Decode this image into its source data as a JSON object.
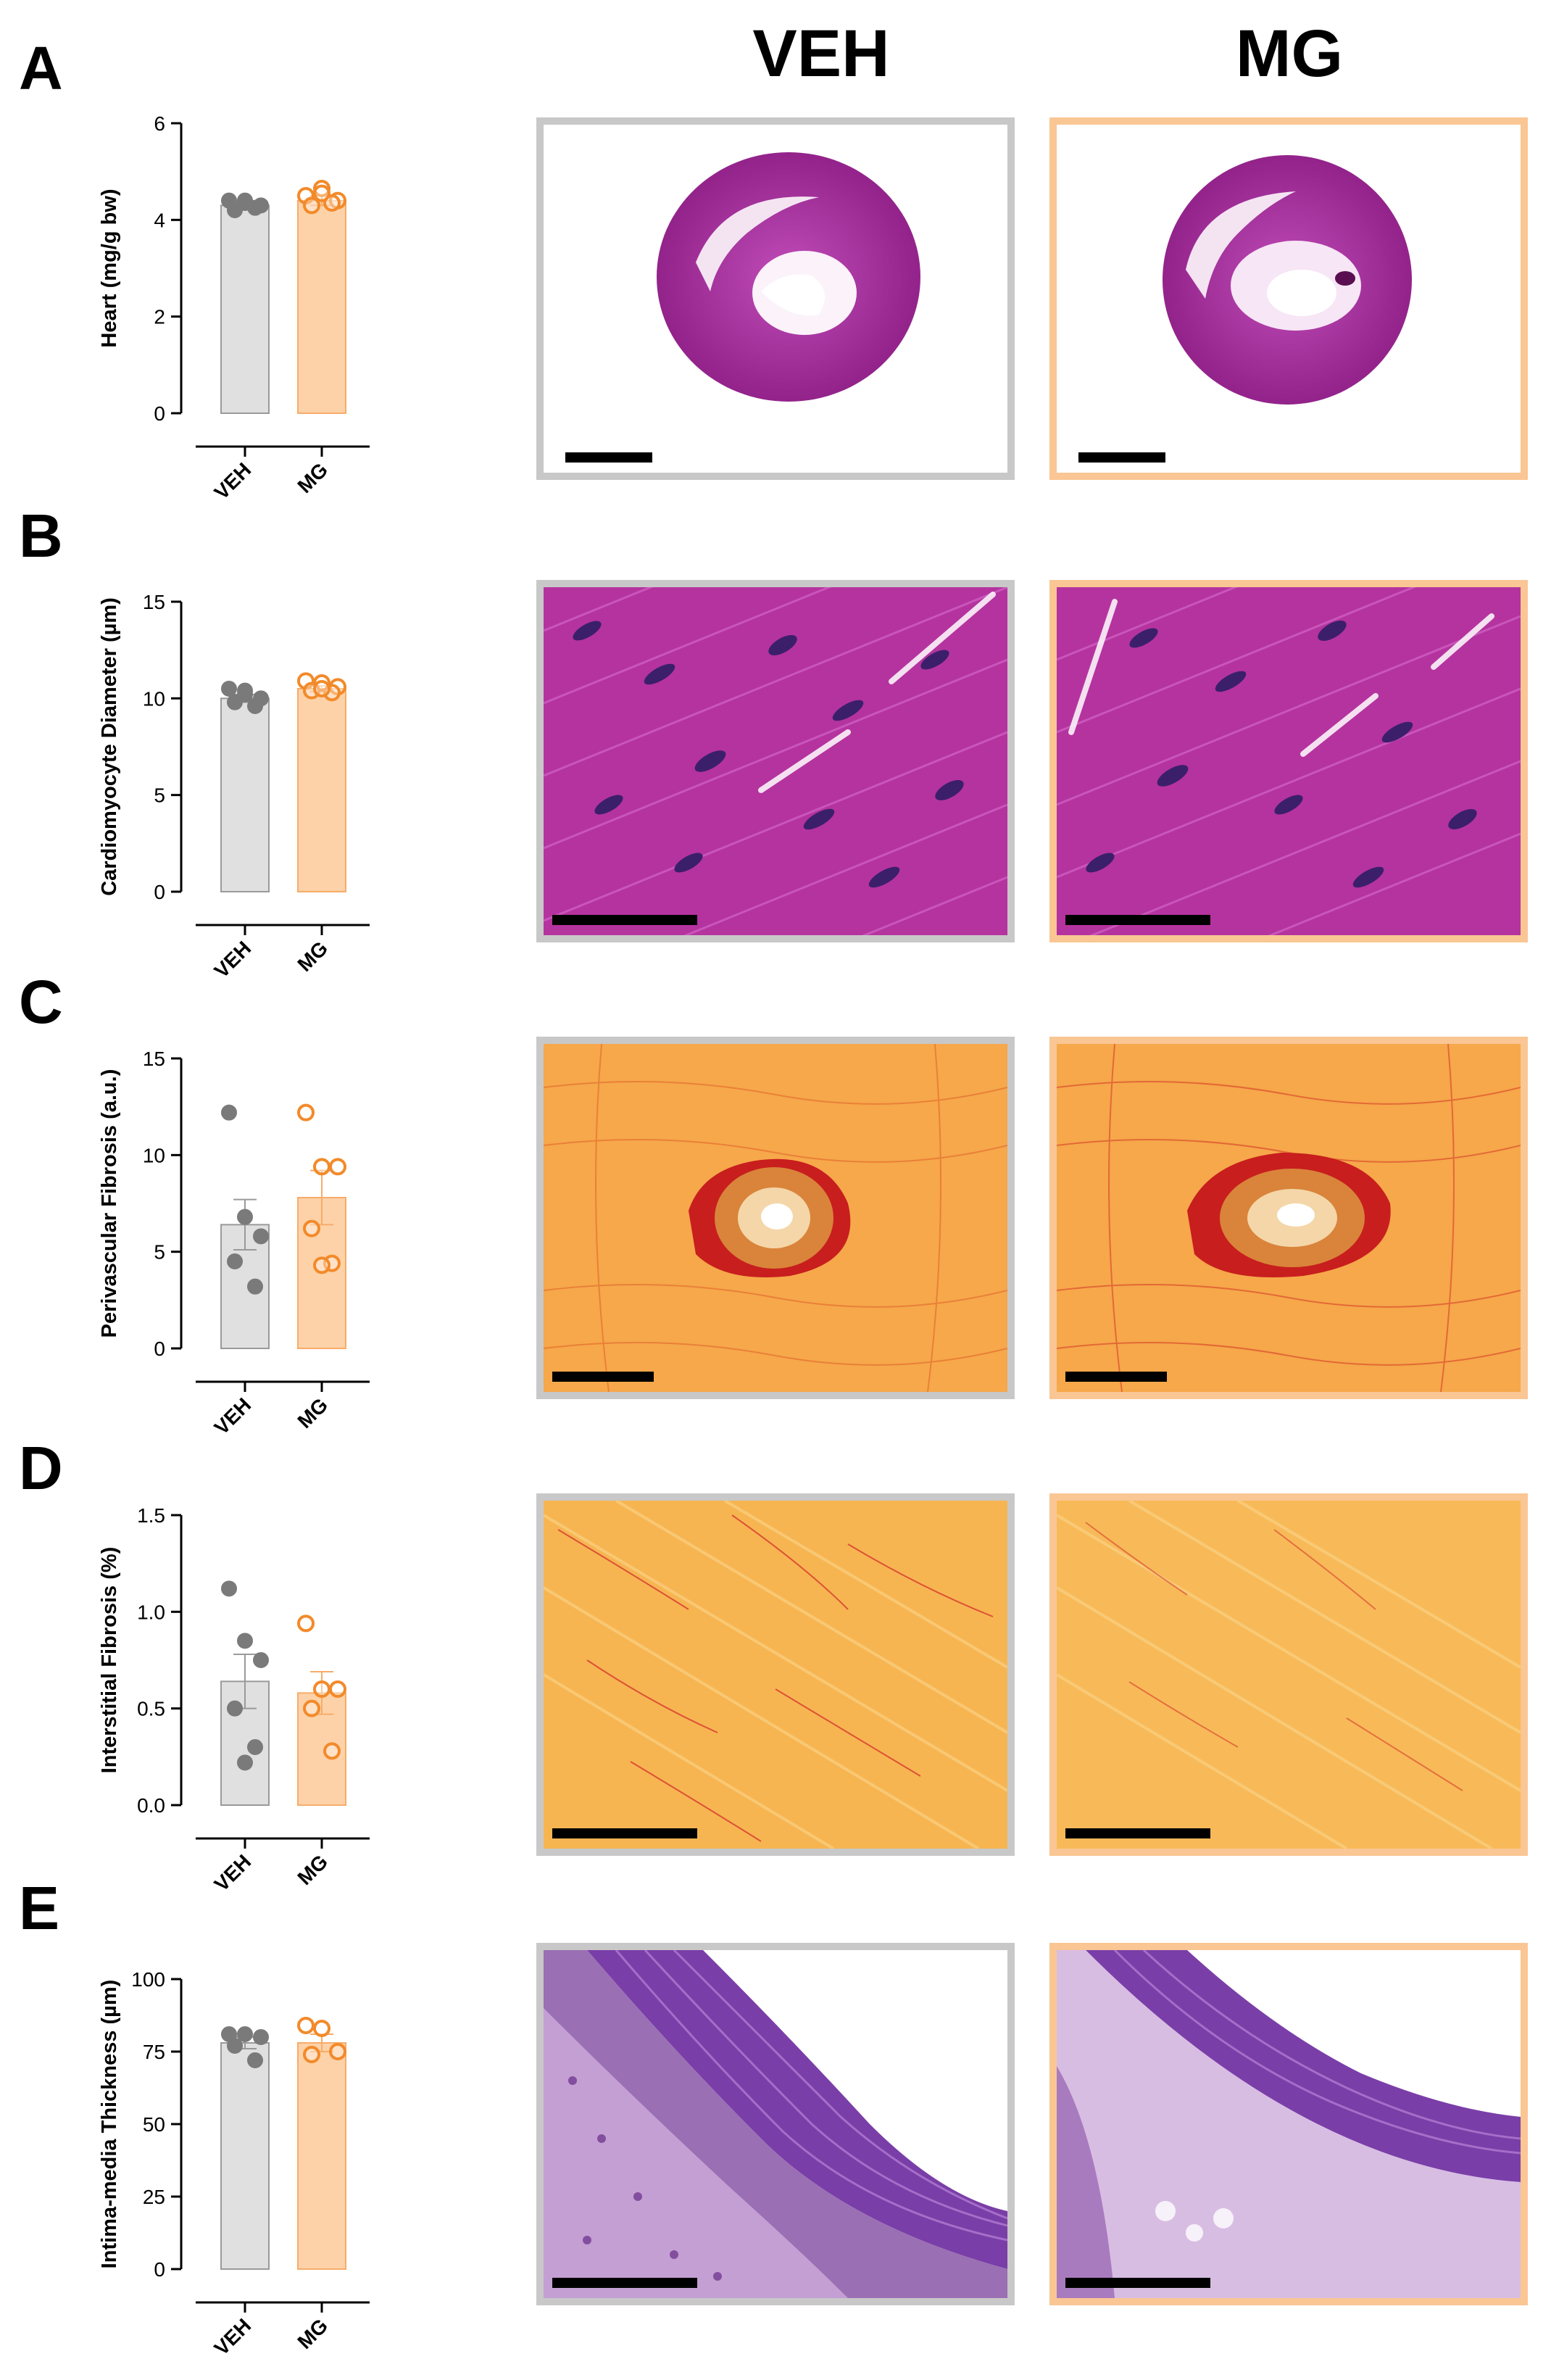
{
  "column_headers": {
    "veh": "VEH",
    "mg": "MG"
  },
  "colors": {
    "veh_fill": "#e0e0e0",
    "veh_stroke": "#9a9a9a",
    "veh_dot": "#7a7a7a",
    "mg_fill": "#fdd2a8",
    "mg_stroke": "#f7ac6a",
    "mg_dot": "#f28a2a",
    "veh_frame": "#c8c8c8",
    "mg_frame": "#f9c694"
  },
  "panels": [
    {
      "letter": "A",
      "image_kind": "whole-heart H&E section"
    },
    {
      "letter": "B",
      "image_kind": "cardiomyocyte H&E"
    },
    {
      "letter": "C",
      "image_kind": "picrosirius red perivascular"
    },
    {
      "letter": "D",
      "image_kind": "picrosirius red interstitial"
    },
    {
      "letter": "E",
      "image_kind": "aortic wall H&E"
    }
  ],
  "chart_data": [
    {
      "panel": "A",
      "type": "bar",
      "ylabel": "Heart (mg/g bw)",
      "ylim": [
        0,
        6
      ],
      "yticks": [
        "0",
        "2",
        "4",
        "6"
      ],
      "categories": [
        "VEH",
        "MG"
      ],
      "values": [
        4.3,
        4.4
      ],
      "sem": [
        0.08,
        0.1
      ],
      "points": [
        [
          4.4,
          4.4,
          4.3,
          4.2,
          4.25,
          4.35
        ],
        [
          4.5,
          4.65,
          4.4,
          4.3,
          4.35,
          4.55
        ]
      ]
    },
    {
      "panel": "B",
      "type": "bar",
      "ylabel": "Cardiomyocyte Diameter (µm)",
      "ylim": [
        0,
        15
      ],
      "yticks": [
        "0",
        "5",
        "10",
        "15"
      ],
      "categories": [
        "VEH",
        "MG"
      ],
      "values": [
        10.0,
        10.5
      ],
      "sem": [
        0.2,
        0.15
      ],
      "points": [
        [
          10.5,
          10.4,
          10.0,
          9.8,
          9.6,
          10.2
        ],
        [
          10.9,
          10.8,
          10.6,
          10.4,
          10.3,
          10.5
        ]
      ]
    },
    {
      "panel": "C",
      "type": "bar",
      "ylabel": "Perivascular Fibrosis (a.u.)",
      "ylim": [
        0,
        15
      ],
      "yticks": [
        "0",
        "5",
        "10",
        "15"
      ],
      "categories": [
        "VEH",
        "MG"
      ],
      "values": [
        6.4,
        7.8
      ],
      "sem": [
        1.3,
        1.4
      ],
      "points": [
        [
          12.2,
          6.8,
          5.8,
          4.5,
          3.2
        ],
        [
          12.2,
          9.4,
          9.4,
          6.2,
          4.4,
          4.3
        ]
      ]
    },
    {
      "panel": "D",
      "type": "bar",
      "ylabel": "Interstitial Fibrosis (%)",
      "ylim": [
        0,
        1.5
      ],
      "yticks": [
        "0.0",
        "0.5",
        "1.0",
        "1.5"
      ],
      "categories": [
        "VEH",
        "MG"
      ],
      "values": [
        0.64,
        0.58
      ],
      "sem": [
        0.14,
        0.11
      ],
      "points": [
        [
          1.12,
          0.85,
          0.75,
          0.5,
          0.3,
          0.22
        ],
        [
          0.94,
          0.6,
          0.6,
          0.5,
          0.28
        ]
      ]
    },
    {
      "panel": "E",
      "type": "bar",
      "ylabel": "Intima-media Thickness (µm)",
      "ylim": [
        0,
        100
      ],
      "yticks": [
        "0",
        "25",
        "50",
        "75",
        "100"
      ],
      "categories": [
        "VEH",
        "MG"
      ],
      "values": [
        78,
        78
      ],
      "sem": [
        2,
        3
      ],
      "points": [
        [
          81,
          81,
          80,
          77,
          72
        ],
        [
          84,
          83,
          75,
          74
        ]
      ]
    }
  ]
}
